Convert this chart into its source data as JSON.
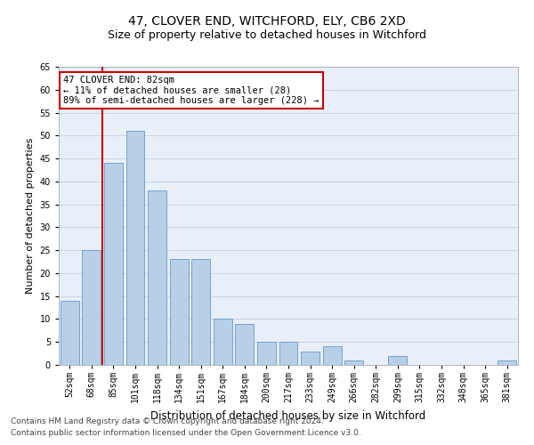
{
  "title1": "47, CLOVER END, WITCHFORD, ELY, CB6 2XD",
  "title2": "Size of property relative to detached houses in Witchford",
  "xlabel": "Distribution of detached houses by size in Witchford",
  "ylabel": "Number of detached properties",
  "categories": [
    "52sqm",
    "68sqm",
    "85sqm",
    "101sqm",
    "118sqm",
    "134sqm",
    "151sqm",
    "167sqm",
    "184sqm",
    "200sqm",
    "217sqm",
    "233sqm",
    "249sqm",
    "266sqm",
    "282sqm",
    "299sqm",
    "315sqm",
    "332sqm",
    "348sqm",
    "365sqm",
    "381sqm"
  ],
  "values": [
    14,
    25,
    44,
    51,
    38,
    23,
    23,
    10,
    9,
    5,
    5,
    3,
    4,
    1,
    0,
    2,
    0,
    0,
    0,
    0,
    1
  ],
  "bar_color": "#b8cfe8",
  "bar_edge_color": "#6699cc",
  "vline_color": "#cc0000",
  "vline_x_index": 2,
  "annotation_line1": "47 CLOVER END: 82sqm",
  "annotation_line2": "← 11% of detached houses are smaller (28)",
  "annotation_line3": "89% of semi-detached houses are larger (228) →",
  "annotation_box_facecolor": "#ffffff",
  "annotation_box_edgecolor": "#cc0000",
  "ylim": [
    0,
    65
  ],
  "yticks": [
    0,
    5,
    10,
    15,
    20,
    25,
    30,
    35,
    40,
    45,
    50,
    55,
    60,
    65
  ],
  "bg_color": "#ffffff",
  "plot_bg_color": "#e8eff8",
  "grid_color": "#c8d4e8",
  "footer1": "Contains HM Land Registry data © Crown copyright and database right 2024.",
  "footer2": "Contains public sector information licensed under the Open Government Licence v3.0.",
  "title1_fontsize": 10,
  "title2_fontsize": 9,
  "xlabel_fontsize": 8.5,
  "ylabel_fontsize": 8,
  "tick_fontsize": 7,
  "annotation_fontsize": 7.5,
  "footer_fontsize": 6.5
}
